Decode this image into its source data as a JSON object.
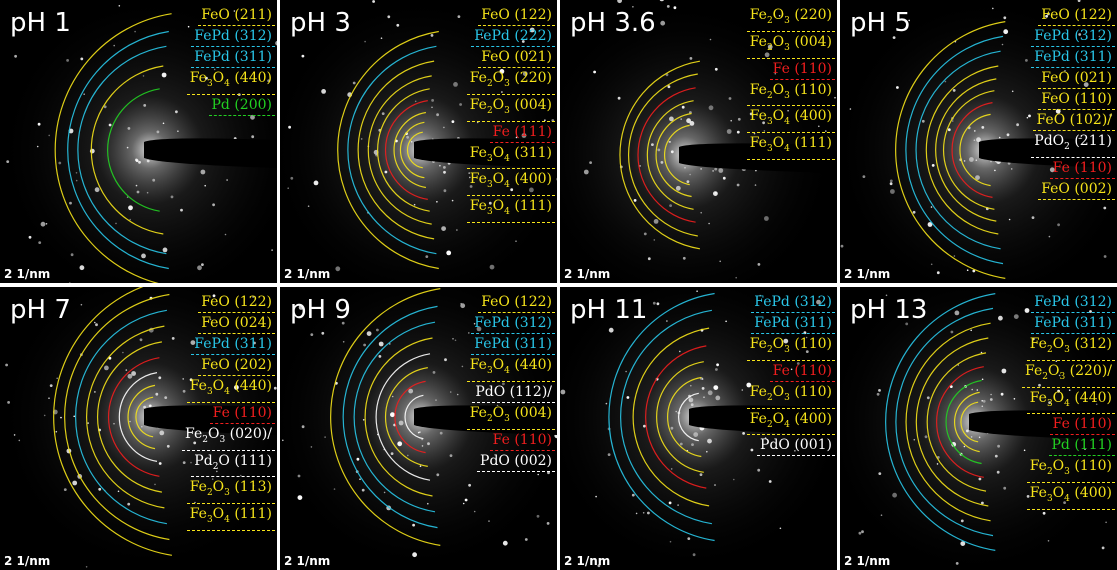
{
  "scale_label": "2 1/nm",
  "colors": {
    "yellow": "#f5e31a",
    "cyan": "#29c6e8",
    "red": "#f01e1e",
    "green": "#22d022",
    "white": "#ffffff"
  },
  "panels": [
    {
      "title": "pH 1",
      "labels": [
        {
          "text": "FeO (211)",
          "color": "yellow"
        },
        {
          "text": "FePd (312)",
          "color": "cyan"
        },
        {
          "text": "FePd (311)",
          "color": "cyan"
        },
        {
          "text": "Fe<sub>3</sub>O<sub>4</sub> (440)",
          "color": "yellow"
        },
        {
          "text": "Pd (200)",
          "color": "green"
        }
      ]
    },
    {
      "title": "pH 3",
      "labels": [
        {
          "text": "FeO (122)",
          "color": "yellow"
        },
        {
          "text": "FePd (222)",
          "color": "cyan"
        },
        {
          "text": "FeO (021)",
          "color": "yellow"
        },
        {
          "text": "Fe<sub>2</sub>O<sub>3</sub> (220)",
          "color": "yellow"
        },
        {
          "text": "Fe<sub>2</sub>O<sub>3</sub> (004)",
          "color": "yellow"
        },
        {
          "text": "Fe (111)",
          "color": "red"
        },
        {
          "text": "Fe<sub>3</sub>O<sub>4</sub> (311)",
          "color": "yellow"
        },
        {
          "text": "Fe<sub>3</sub>O<sub>4</sub> (400)",
          "color": "yellow"
        },
        {
          "text": "Fe<sub>3</sub>O<sub>4</sub> (111)",
          "color": "yellow"
        }
      ]
    },
    {
      "title": "pH 3.6",
      "labels": [
        {
          "text": "Fe<sub>2</sub>O<sub>3</sub> (220)",
          "color": "yellow"
        },
        {
          "text": "Fe<sub>2</sub>O<sub>3</sub> (004)",
          "color": "yellow"
        },
        {
          "text": "Fe (110)",
          "color": "red"
        },
        {
          "text": "Fe<sub>2</sub>O<sub>3</sub> (110)",
          "color": "yellow"
        },
        {
          "text": "Fe<sub>3</sub>O<sub>4</sub> (400)",
          "color": "yellow"
        },
        {
          "text": "Fe<sub>3</sub>O<sub>4</sub> (111)",
          "color": "yellow"
        }
      ]
    },
    {
      "title": "pH 5",
      "labels": [
        {
          "text": "FeO (122)",
          "color": "yellow"
        },
        {
          "text": "FePd (312)",
          "color": "cyan"
        },
        {
          "text": "FePd (311)",
          "color": "cyan"
        },
        {
          "text": "FeO (021)",
          "color": "yellow"
        },
        {
          "text": "FeO (110)",
          "color": "yellow"
        },
        {
          "text": "FeO (102)/",
          "color": "yellow"
        },
        {
          "text": "PdO<sub>2</sub> (211)",
          "color": "white"
        },
        {
          "text": "Fe (110)",
          "color": "red"
        },
        {
          "text": "FeO (002)",
          "color": "yellow"
        }
      ]
    },
    {
      "title": "pH 7",
      "labels": [
        {
          "text": "FeO (122)",
          "color": "yellow"
        },
        {
          "text": "FeO (024)",
          "color": "yellow"
        },
        {
          "text": "FePd (311)",
          "color": "cyan"
        },
        {
          "text": "FeO (202)",
          "color": "yellow"
        },
        {
          "text": "Fe<sub>3</sub>O<sub>4</sub> (440)",
          "color": "yellow"
        },
        {
          "text": "Fe (110)",
          "color": "red"
        },
        {
          "text": "Fe<sub>2</sub>O<sub>3</sub> (020)/",
          "color": "white"
        },
        {
          "text": "Pd<sub>2</sub>O (111)",
          "color": "white"
        },
        {
          "text": "Fe<sub>2</sub>O<sub>3</sub> (113)",
          "color": "yellow"
        },
        {
          "text": "Fe<sub>3</sub>O<sub>4</sub> (111)",
          "color": "yellow"
        }
      ]
    },
    {
      "title": "pH 9",
      "labels": [
        {
          "text": "FeO (122)",
          "color": "yellow"
        },
        {
          "text": "FePd (312)",
          "color": "cyan"
        },
        {
          "text": "FePd (311)",
          "color": "cyan"
        },
        {
          "text": "Fe<sub>3</sub>O<sub>4</sub> (440)",
          "color": "yellow"
        },
        {
          "text": "PdO (112)/",
          "color": "white"
        },
        {
          "text": "Fe<sub>2</sub>O<sub>3</sub> (004)",
          "color": "yellow"
        },
        {
          "text": "Fe (110)",
          "color": "red"
        },
        {
          "text": "PdO (002)",
          "color": "white"
        }
      ]
    },
    {
      "title": "pH 11",
      "labels": [
        {
          "text": "FePd (312)",
          "color": "cyan"
        },
        {
          "text": "FePd (311)",
          "color": "cyan"
        },
        {
          "text": "Fe<sub>2</sub>O<sub>3</sub> (110)",
          "color": "yellow"
        },
        {
          "text": "Fe (110)",
          "color": "red"
        },
        {
          "text": "Fe<sub>2</sub>O<sub>3</sub> (110)",
          "color": "yellow"
        },
        {
          "text": "Fe<sub>2</sub>O<sub>4</sub> (400)",
          "color": "yellow"
        },
        {
          "text": "PdO (001)",
          "color": "white"
        }
      ]
    },
    {
      "title": "pH 13",
      "labels": [
        {
          "text": "FePd (312)",
          "color": "cyan"
        },
        {
          "text": "FePd (311)",
          "color": "cyan"
        },
        {
          "text": "Fe<sub>2</sub>O<sub>3</sub> (312)",
          "color": "yellow"
        },
        {
          "text": "Fe<sub>2</sub>O<sub>3</sub> (220)/",
          "color": "yellow"
        },
        {
          "text": "Fe<sub>3</sub>O<sub>4</sub> (440)",
          "color": "yellow"
        },
        {
          "text": "Fe (110)",
          "color": "red"
        },
        {
          "text": "Pd (111)",
          "color": "green"
        },
        {
          "text": "Fe<sub>2</sub>O<sub>3</sub> (110)",
          "color": "yellow"
        },
        {
          "text": "Fe<sub>3</sub>O<sub>4</sub> (400)",
          "color": "yellow"
        }
      ]
    }
  ]
}
